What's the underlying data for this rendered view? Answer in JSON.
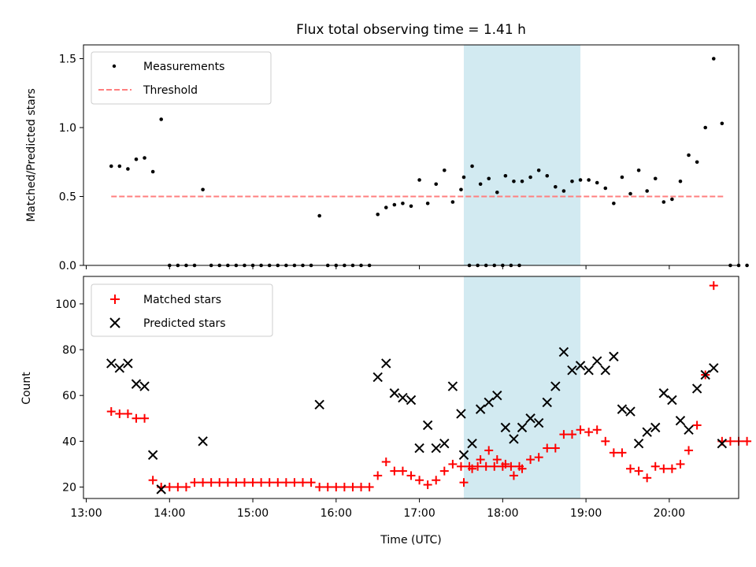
{
  "title": "Flux total observing time = 1.41 h",
  "colors": {
    "measurements": "#000000",
    "threshold": "#ff7f7f",
    "matched": "#ff0000",
    "predicted": "#000000",
    "shade": "#add8e6"
  },
  "chart_data": [
    {
      "type": "scatter",
      "ylabel": "Matched/Predicted stars",
      "ylim": [
        0,
        1.6
      ],
      "xlim": [
        "12:58",
        "20:50"
      ],
      "yticks": [
        {
          "v": 0.0,
          "label": "0.0"
        },
        {
          "v": 0.5,
          "label": "0.5"
        },
        {
          "v": 1.0,
          "label": "1.0"
        },
        {
          "v": 1.5,
          "label": "1.5"
        }
      ],
      "shaded_interval": [
        "17:32",
        "18:56"
      ],
      "legend": {
        "position": "upper left",
        "entries": [
          "Measurements",
          "Threshold"
        ]
      },
      "threshold": {
        "name": "Threshold",
        "value": 0.5,
        "x_range": [
          "13:18",
          "20:40"
        ]
      },
      "series": [
        {
          "name": "Measurements",
          "points": [
            [
              "13:18",
              0.72
            ],
            [
              "13:24",
              0.72
            ],
            [
              "13:30",
              0.7
            ],
            [
              "13:36",
              0.77
            ],
            [
              "13:42",
              0.78
            ],
            [
              "13:48",
              0.68
            ],
            [
              "13:54",
              1.06
            ],
            [
              "14:00",
              0.0
            ],
            [
              "14:06",
              0.0
            ],
            [
              "14:12",
              0.0
            ],
            [
              "14:18",
              0.0
            ],
            [
              "14:24",
              0.55
            ],
            [
              "14:30",
              0.0
            ],
            [
              "14:36",
              0.0
            ],
            [
              "14:42",
              0.0
            ],
            [
              "14:48",
              0.0
            ],
            [
              "14:54",
              0.0
            ],
            [
              "15:00",
              0.0
            ],
            [
              "15:06",
              0.0
            ],
            [
              "15:12",
              0.0
            ],
            [
              "15:18",
              0.0
            ],
            [
              "15:24",
              0.0
            ],
            [
              "15:30",
              0.0
            ],
            [
              "15:36",
              0.0
            ],
            [
              "15:42",
              0.0
            ],
            [
              "15:48",
              0.36
            ],
            [
              "15:54",
              0.0
            ],
            [
              "16:00",
              0.0
            ],
            [
              "16:06",
              0.0
            ],
            [
              "16:12",
              0.0
            ],
            [
              "16:18",
              0.0
            ],
            [
              "16:24",
              0.0
            ],
            [
              "16:30",
              0.37
            ],
            [
              "16:36",
              0.42
            ],
            [
              "16:42",
              0.44
            ],
            [
              "16:48",
              0.45
            ],
            [
              "16:54",
              0.43
            ],
            [
              "17:00",
              0.62
            ],
            [
              "17:06",
              0.45
            ],
            [
              "17:12",
              0.59
            ],
            [
              "17:18",
              0.69
            ],
            [
              "17:24",
              0.46
            ],
            [
              "17:30",
              0.55
            ],
            [
              "17:36",
              0.0
            ],
            [
              "17:42",
              0.0
            ],
            [
              "17:48",
              0.0
            ],
            [
              "17:54",
              0.0
            ],
            [
              "18:00",
              0.0
            ],
            [
              "18:06",
              0.0
            ],
            [
              "18:12",
              0.0
            ],
            [
              "17:32",
              0.64
            ],
            [
              "17:38",
              0.72
            ],
            [
              "17:44",
              0.59
            ],
            [
              "17:50",
              0.63
            ],
            [
              "17:56",
              0.53
            ],
            [
              "18:02",
              0.65
            ],
            [
              "18:08",
              0.61
            ],
            [
              "18:14",
              0.61
            ],
            [
              "18:20",
              0.64
            ],
            [
              "18:26",
              0.69
            ],
            [
              "18:32",
              0.65
            ],
            [
              "18:38",
              0.57
            ],
            [
              "18:44",
              0.54
            ],
            [
              "18:50",
              0.61
            ],
            [
              "18:56",
              0.62
            ],
            [
              "19:02",
              0.62
            ],
            [
              "19:08",
              0.6
            ],
            [
              "19:14",
              0.56
            ],
            [
              "19:20",
              0.45
            ],
            [
              "19:26",
              0.64
            ],
            [
              "19:32",
              0.52
            ],
            [
              "19:38",
              0.69
            ],
            [
              "19:44",
              0.54
            ],
            [
              "19:50",
              0.63
            ],
            [
              "19:56",
              0.46
            ],
            [
              "20:02",
              0.48
            ],
            [
              "20:08",
              0.61
            ],
            [
              "20:14",
              0.8
            ],
            [
              "20:20",
              0.75
            ],
            [
              "20:26",
              1.0
            ],
            [
              "20:32",
              1.5
            ],
            [
              "20:38",
              1.03
            ],
            [
              "20:44",
              0.0
            ],
            [
              "20:50",
              0.0
            ],
            [
              "20:56",
              0.0
            ]
          ]
        }
      ]
    },
    {
      "type": "scatter",
      "xlabel": "Time (UTC)",
      "ylabel": "Count",
      "ylim": [
        15,
        112
      ],
      "xlim": [
        "12:58",
        "20:50"
      ],
      "yticks": [
        {
          "v": 20,
          "label": "20"
        },
        {
          "v": 40,
          "label": "40"
        },
        {
          "v": 60,
          "label": "60"
        },
        {
          "v": 80,
          "label": "80"
        },
        {
          "v": 100,
          "label": "100"
        }
      ],
      "xticks": [
        {
          "t": "13:00",
          "label": "13:00"
        },
        {
          "t": "14:00",
          "label": "14:00"
        },
        {
          "t": "15:00",
          "label": "15:00"
        },
        {
          "t": "16:00",
          "label": "16:00"
        },
        {
          "t": "17:00",
          "label": "17:00"
        },
        {
          "t": "18:00",
          "label": "18:00"
        },
        {
          "t": "19:00",
          "label": "19:00"
        },
        {
          "t": "20:00",
          "label": "20:00"
        }
      ],
      "shaded_interval": [
        "17:32",
        "18:56"
      ],
      "legend": {
        "position": "upper left",
        "entries": [
          "Matched stars",
          "Predicted stars"
        ]
      },
      "series": [
        {
          "name": "Matched stars",
          "marker": "plus",
          "points": [
            [
              "13:18",
              53
            ],
            [
              "13:24",
              52
            ],
            [
              "13:30",
              52
            ],
            [
              "13:36",
              50
            ],
            [
              "13:42",
              50
            ],
            [
              "13:48",
              23
            ],
            [
              "13:54",
              20
            ],
            [
              "14:00",
              20
            ],
            [
              "14:06",
              20
            ],
            [
              "14:12",
              20
            ],
            [
              "14:18",
              22
            ],
            [
              "14:24",
              22
            ],
            [
              "14:30",
              22
            ],
            [
              "14:36",
              22
            ],
            [
              "14:42",
              22
            ],
            [
              "14:48",
              22
            ],
            [
              "14:54",
              22
            ],
            [
              "15:00",
              22
            ],
            [
              "15:06",
              22
            ],
            [
              "15:12",
              22
            ],
            [
              "15:18",
              22
            ],
            [
              "15:24",
              22
            ],
            [
              "15:30",
              22
            ],
            [
              "15:36",
              22
            ],
            [
              "15:42",
              22
            ],
            [
              "15:48",
              20
            ],
            [
              "15:54",
              20
            ],
            [
              "16:00",
              20
            ],
            [
              "16:06",
              20
            ],
            [
              "16:12",
              20
            ],
            [
              "16:18",
              20
            ],
            [
              "16:24",
              20
            ],
            [
              "16:30",
              25
            ],
            [
              "16:36",
              31
            ],
            [
              "16:42",
              27
            ],
            [
              "16:48",
              27
            ],
            [
              "16:54",
              25
            ],
            [
              "17:00",
              23
            ],
            [
              "17:06",
              21
            ],
            [
              "17:12",
              23
            ],
            [
              "17:18",
              27
            ],
            [
              "17:24",
              30
            ],
            [
              "17:30",
              29
            ],
            [
              "17:36",
              29
            ],
            [
              "17:42",
              29
            ],
            [
              "17:48",
              29
            ],
            [
              "17:54",
              29
            ],
            [
              "18:00",
              29
            ],
            [
              "18:06",
              29
            ],
            [
              "18:12",
              29
            ],
            [
              "17:32",
              22
            ],
            [
              "17:38",
              28
            ],
            [
              "17:44",
              32
            ],
            [
              "17:50",
              36
            ],
            [
              "17:56",
              32
            ],
            [
              "18:02",
              30
            ],
            [
              "18:08",
              25
            ],
            [
              "18:14",
              28
            ],
            [
              "18:20",
              32
            ],
            [
              "18:26",
              33
            ],
            [
              "18:32",
              37
            ],
            [
              "18:38",
              37
            ],
            [
              "18:44",
              43
            ],
            [
              "18:50",
              43
            ],
            [
              "18:56",
              45
            ],
            [
              "19:02",
              44
            ],
            [
              "19:08",
              45
            ],
            [
              "19:14",
              40
            ],
            [
              "19:20",
              35
            ],
            [
              "19:26",
              35
            ],
            [
              "19:32",
              28
            ],
            [
              "19:38",
              27
            ],
            [
              "19:44",
              24
            ],
            [
              "19:50",
              29
            ],
            [
              "19:56",
              28
            ],
            [
              "20:02",
              28
            ],
            [
              "20:08",
              30
            ],
            [
              "20:14",
              36
            ],
            [
              "20:20",
              47
            ],
            [
              "20:26",
              69
            ],
            [
              "20:32",
              108
            ],
            [
              "20:38",
              40
            ],
            [
              "20:44",
              40
            ],
            [
              "20:50",
              40
            ],
            [
              "20:56",
              40
            ]
          ]
        },
        {
          "name": "Predicted stars",
          "marker": "x",
          "points": [
            [
              "13:18",
              74
            ],
            [
              "13:24",
              72
            ],
            [
              "13:30",
              74
            ],
            [
              "13:36",
              65
            ],
            [
              "13:42",
              64
            ],
            [
              "13:48",
              34
            ],
            [
              "13:54",
              19
            ],
            [
              "14:24",
              40
            ],
            [
              "15:48",
              56
            ],
            [
              "16:30",
              68
            ],
            [
              "16:36",
              74
            ],
            [
              "16:42",
              61
            ],
            [
              "16:48",
              59
            ],
            [
              "16:54",
              58
            ],
            [
              "17:00",
              37
            ],
            [
              "17:06",
              47
            ],
            [
              "17:12",
              37
            ],
            [
              "17:18",
              39
            ],
            [
              "17:24",
              64
            ],
            [
              "17:30",
              52
            ],
            [
              "17:32",
              34
            ],
            [
              "17:38",
              39
            ],
            [
              "17:44",
              54
            ],
            [
              "17:50",
              57
            ],
            [
              "17:56",
              60
            ],
            [
              "18:02",
              46
            ],
            [
              "18:08",
              41
            ],
            [
              "18:14",
              46
            ],
            [
              "18:20",
              50
            ],
            [
              "18:26",
              48
            ],
            [
              "18:32",
              57
            ],
            [
              "18:38",
              64
            ],
            [
              "18:44",
              79
            ],
            [
              "18:50",
              71
            ],
            [
              "18:56",
              73
            ],
            [
              "19:02",
              71
            ],
            [
              "19:08",
              75
            ],
            [
              "19:14",
              71
            ],
            [
              "19:20",
              77
            ],
            [
              "19:26",
              54
            ],
            [
              "19:32",
              53
            ],
            [
              "19:38",
              39
            ],
            [
              "19:44",
              44
            ],
            [
              "19:50",
              46
            ],
            [
              "19:56",
              61
            ],
            [
              "20:02",
              58
            ],
            [
              "20:08",
              49
            ],
            [
              "20:14",
              45
            ],
            [
              "20:20",
              63
            ],
            [
              "20:26",
              69
            ],
            [
              "20:32",
              72
            ],
            [
              "20:38",
              39
            ]
          ]
        }
      ]
    }
  ]
}
